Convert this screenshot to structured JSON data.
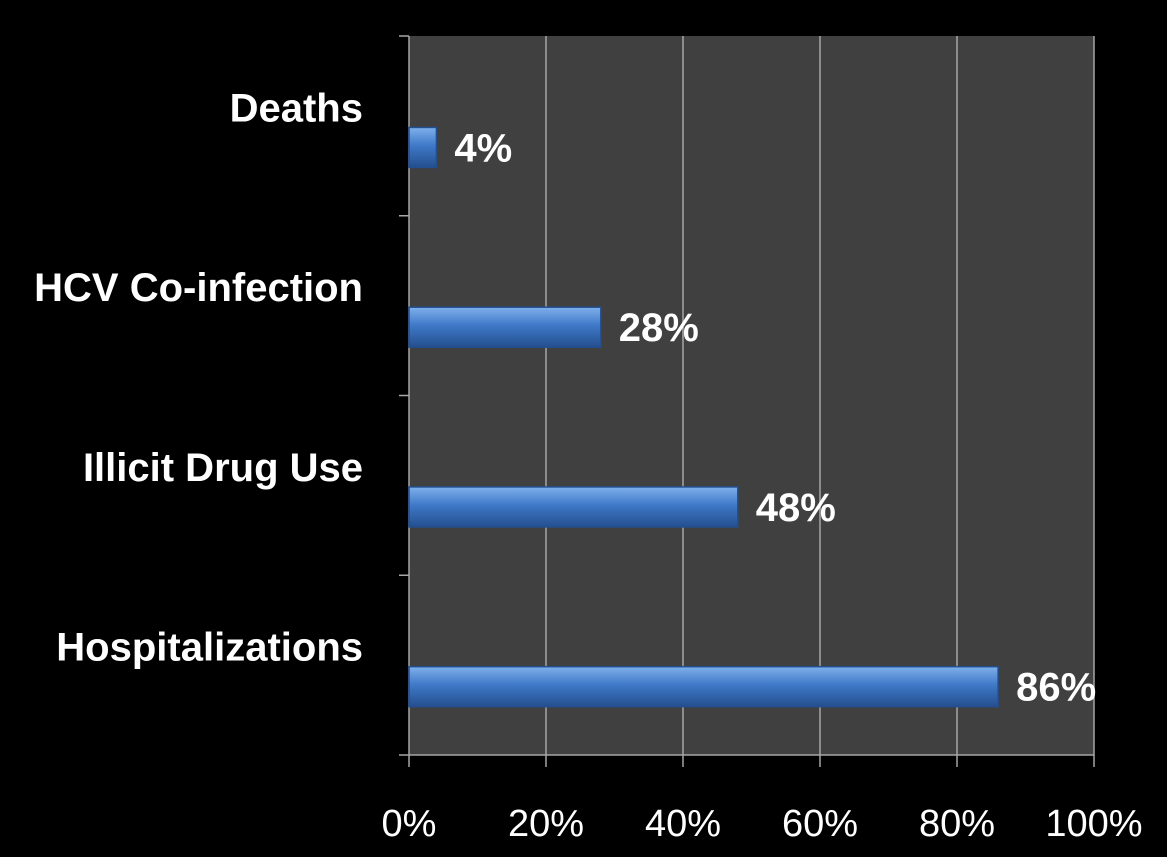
{
  "chart_data": {
    "type": "bar",
    "orientation": "horizontal",
    "categories": [
      "Deaths",
      "HCV Co-infection",
      "Illicit Drug Use",
      "Hospitalizations"
    ],
    "values": [
      4,
      28,
      48,
      86
    ],
    "value_labels": [
      "4%",
      "28%",
      "48%",
      "86%"
    ],
    "xlim": [
      0,
      100
    ],
    "x_ticks": [
      0,
      20,
      40,
      60,
      80,
      100
    ],
    "x_tick_labels": [
      "0%",
      "20%",
      "40%",
      "60%",
      "80%",
      "100%"
    ],
    "grid": true,
    "colors": {
      "background": "#000000",
      "plot_area": "#404040",
      "bar": "#3f79c8",
      "bar_highlight": "#7fb0ec",
      "bar_shadow": "#244f8e",
      "gridline": "#a6a6a6",
      "text": "#ffffff"
    }
  }
}
